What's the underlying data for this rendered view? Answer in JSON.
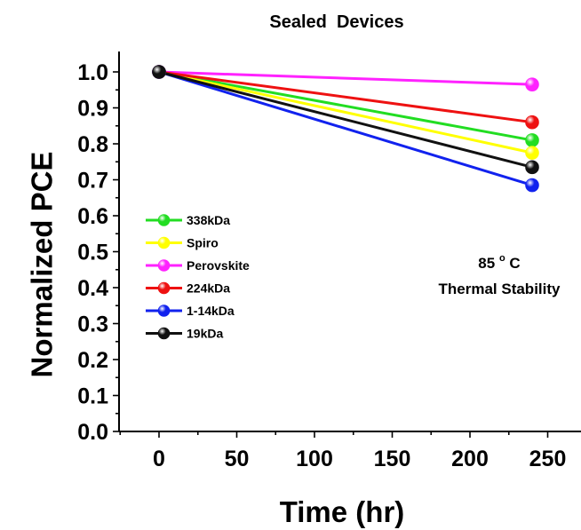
{
  "chart_data": {
    "type": "line",
    "title": "Sealed  Devices",
    "xlabel": "Time (hr)",
    "ylabel": "Normalized PCE",
    "xlim": [
      -30,
      270
    ],
    "ylim": [
      0.0,
      1.05
    ],
    "xticks": [
      "0",
      "50",
      "100",
      "150",
      "200",
      "250"
    ],
    "yticks": [
      "0.0",
      "0.1",
      "0.2",
      "0.3",
      "0.4",
      "0.5",
      "0.6",
      "0.7",
      "0.8",
      "0.9",
      "1.0"
    ],
    "x": [
      0,
      240
    ],
    "grid": false,
    "legend_position": "left-middle",
    "series": [
      {
        "name": "338kDa",
        "color": "#22dd22",
        "values": [
          1.0,
          0.81
        ]
      },
      {
        "name": "Spiro",
        "color": "#ffff00",
        "values": [
          1.0,
          0.775
        ]
      },
      {
        "name": "Perovskite",
        "color": "#ff22ff",
        "values": [
          1.0,
          0.965
        ]
      },
      {
        "name": "224kDa",
        "color": "#ee1111",
        "values": [
          1.0,
          0.86
        ]
      },
      {
        "name": "1-14kDa",
        "color": "#1122ee",
        "values": [
          1.0,
          0.685
        ]
      },
      {
        "name": "19kDa",
        "color": "#111111",
        "values": [
          1.0,
          0.735
        ]
      }
    ],
    "annotation": {
      "line1_value": "85",
      "line1_sup": "o",
      "line1_unit": "C",
      "line2": "Thermal Stability"
    }
  }
}
